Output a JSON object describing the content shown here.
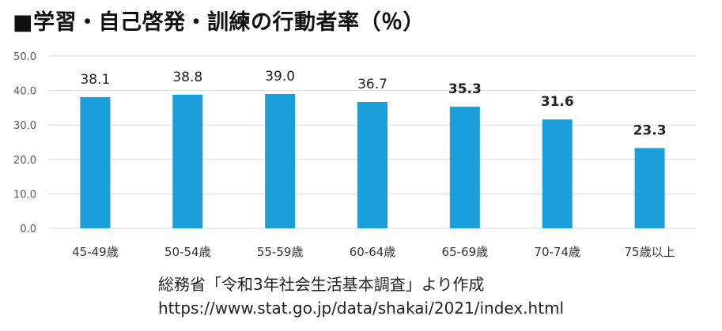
{
  "chart_data": {
    "type": "bar",
    "title": "■学習・自己啓発・訓練の行動者率（％）",
    "categories": [
      "45-49歳",
      "50-54歳",
      "55-59歳",
      "60-64歳",
      "65-69歳",
      "70-74歳",
      "75歳以上"
    ],
    "values": [
      38.1,
      38.8,
      39.0,
      36.7,
      35.3,
      31.6,
      23.3
    ],
    "data_labels": [
      "38.1",
      "38.8",
      "39.0",
      "36.7",
      "35.3",
      "31.6",
      "23.3"
    ],
    "bold_labels": [
      false,
      false,
      false,
      false,
      true,
      true,
      true
    ],
    "yticks": [
      "0.0",
      "10.0",
      "20.0",
      "30.0",
      "40.0",
      "50.0"
    ],
    "ylim": [
      0,
      50
    ],
    "grid": true,
    "legend": "none",
    "bar_color": "#1a9fdb",
    "grid_color": "#d9d9d9"
  },
  "source": {
    "line1": "総務省「令和3年社会生活基本調査」より作成",
    "line2": "https://www.stat.go.jp/data/shakai/2021/index.html"
  }
}
